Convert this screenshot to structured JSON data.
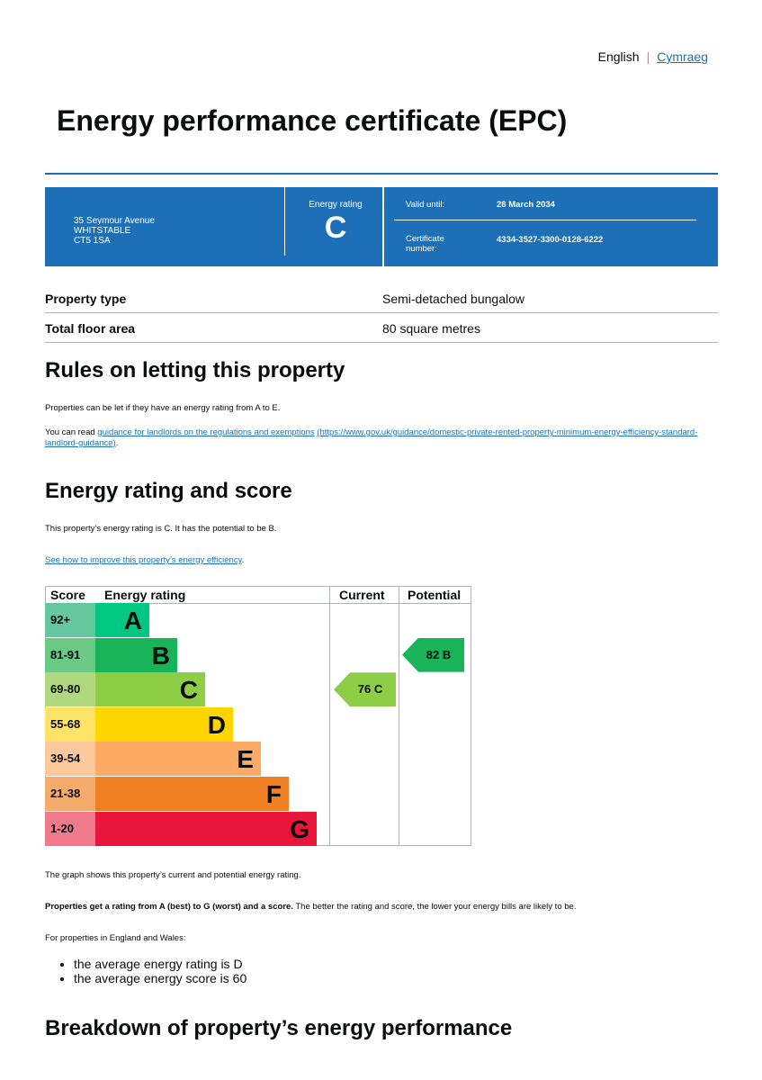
{
  "language": {
    "english": "English",
    "welsh": "Cymraeg"
  },
  "title": "Energy performance certificate (EPC)",
  "banner": {
    "address": [
      "35 Seymour Avenue",
      "WHITSTABLE",
      "CT5 1SA"
    ],
    "energy_rating_label": "Energy rating",
    "energy_rating": "C",
    "valid_until_label": "Valid until:",
    "valid_until": "28 March 2034",
    "certificate_label": "Certificate number:",
    "certificate_number": "4334-3527-3300-0128-6222"
  },
  "details": [
    {
      "key": "Property type",
      "value": "Semi-detached bungalow"
    },
    {
      "key": "Total floor area",
      "value": "80 square metres"
    }
  ],
  "rules": {
    "heading": "Rules on letting this property",
    "p1": "Properties can be let if they have an energy rating from A to E.",
    "p2_prefix": "You can read ",
    "p2_link": "guidance for landlords on the regulations and exemptions",
    "p2_url": "(https://www.gov.uk/guidance/domestic-private-rented-property-minimum-energy-efficiency-standard-landlord-guidance)",
    "p2_suffix": "."
  },
  "rating": {
    "heading": "Energy rating and score",
    "p1": "This property’s energy rating is C. It has the potential to be B.",
    "link": "See how to improve this property’s energy efficiency",
    "link_suffix": "."
  },
  "chart_data": {
    "type": "table",
    "headers": [
      "Score",
      "Energy rating",
      "Current",
      "Potential"
    ],
    "bands": [
      {
        "letter": "A",
        "range": "92+",
        "color": "#00c781",
        "tint": "#64c7a0"
      },
      {
        "letter": "B",
        "range": "81-91",
        "color": "#19b459",
        "tint": "#6bc986"
      },
      {
        "letter": "C",
        "range": "69-80",
        "color": "#8dce46",
        "tint": "#b0d97f"
      },
      {
        "letter": "D",
        "range": "55-68",
        "color": "#ffd500",
        "tint": "#ffe366"
      },
      {
        "letter": "E",
        "range": "39-54",
        "color": "#fcaa65",
        "tint": "#fdc89c"
      },
      {
        "letter": "F",
        "range": "21-38",
        "color": "#ef8023",
        "tint": "#f5ab6b"
      },
      {
        "letter": "G",
        "range": "1-20",
        "color": "#e9153b",
        "tint": "#f07a8c"
      }
    ],
    "current": {
      "score": 76,
      "letter": "C",
      "label": "76  C"
    },
    "potential": {
      "score": 82,
      "letter": "B",
      "label": "82  B"
    }
  },
  "after": {
    "p1": "The graph shows this property’s current and potential energy rating.",
    "p2_bold": "Properties get a rating from A (best) to G (worst) and a score.",
    "p2_rest": " The better the rating and score, the lower your energy bills are likely to be.",
    "p3": "For properties in England and Wales:",
    "bullets": [
      "the average energy rating is D",
      "the average energy score is 60"
    ]
  },
  "breakdown_heading": "Breakdown of property’s energy performance"
}
